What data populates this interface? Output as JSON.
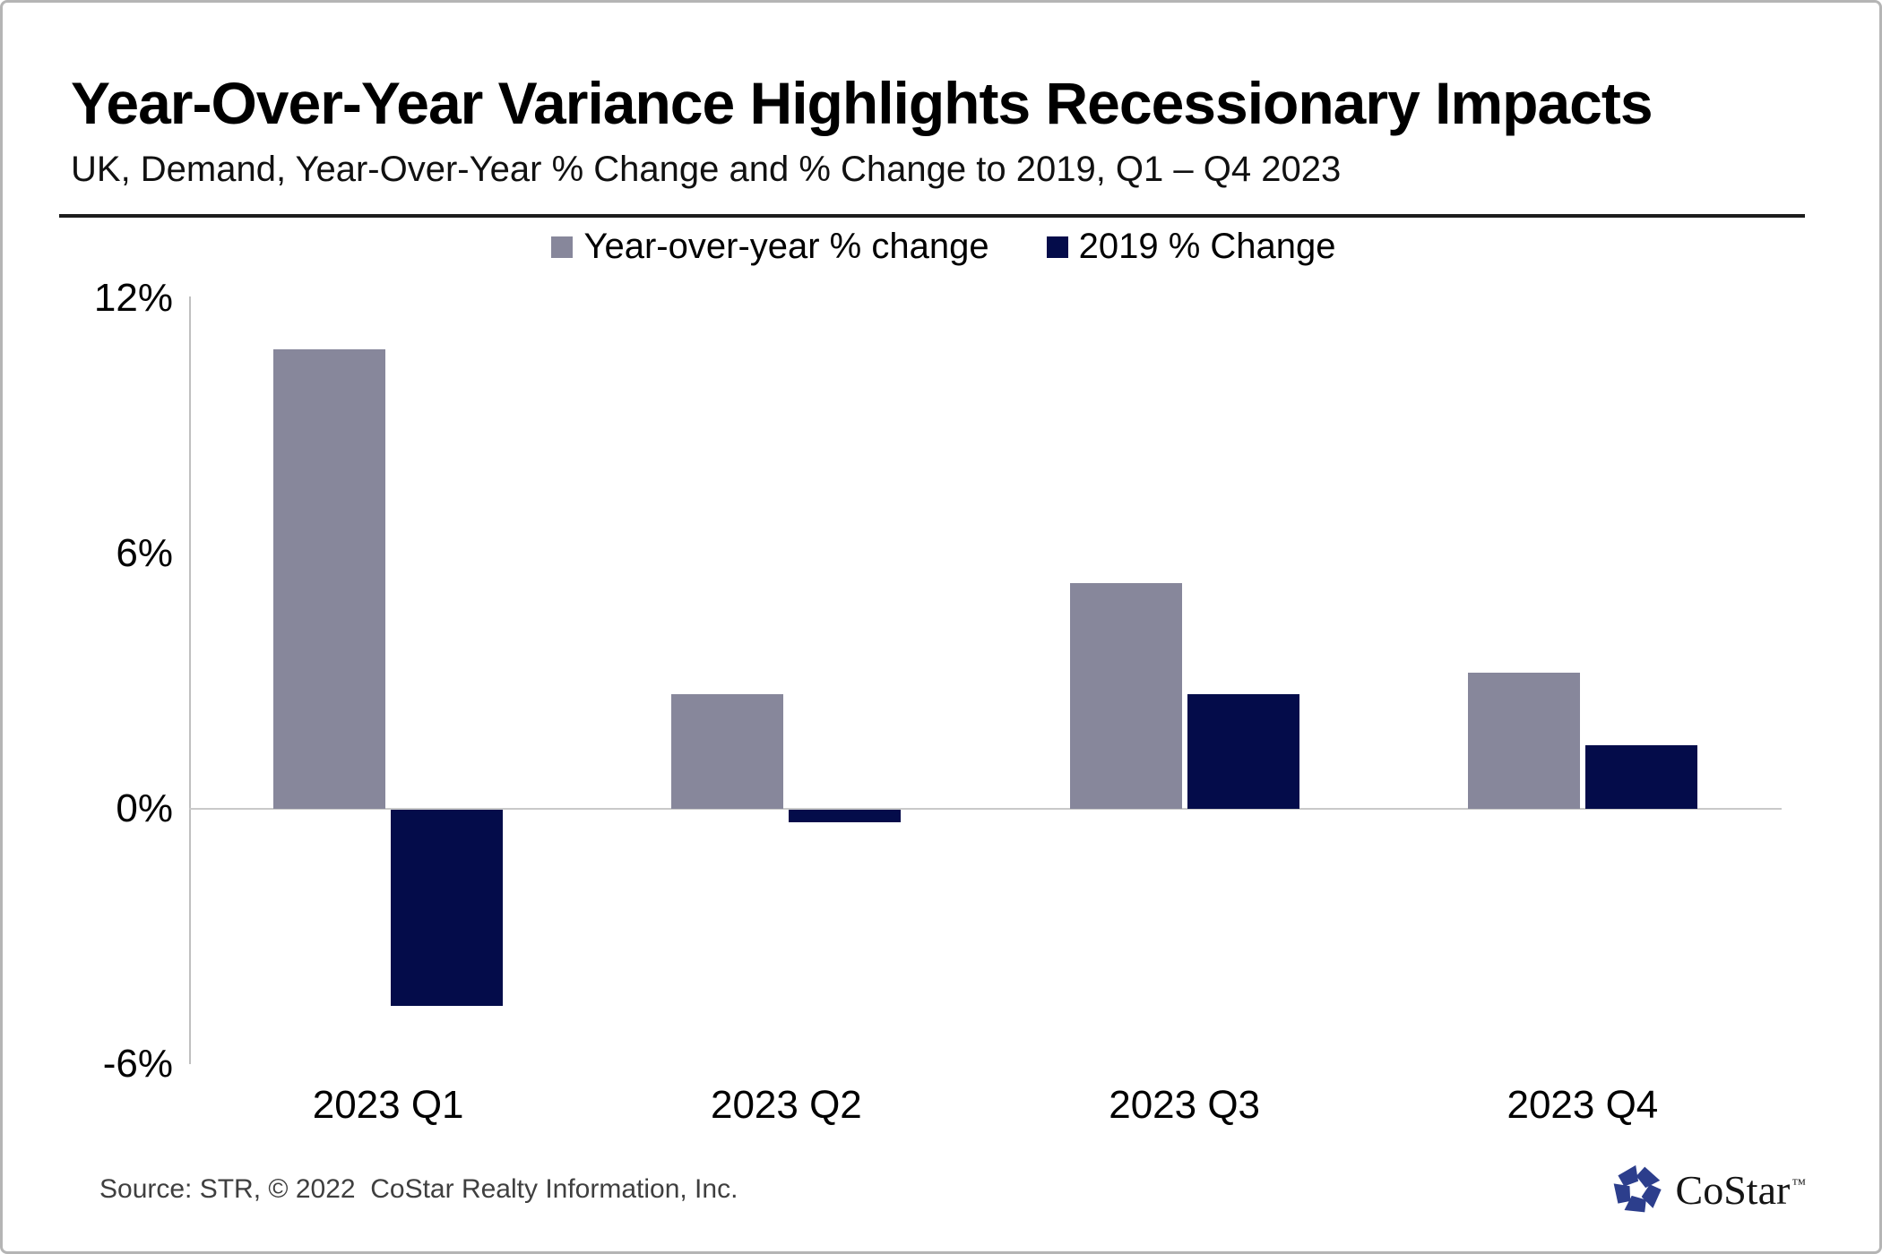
{
  "header": {
    "title": "Year-Over-Year Variance Highlights Recessionary Impacts",
    "subtitle": "UK, Demand, Year-Over-Year % Change and % Change to 2019, Q1 – Q4 2023"
  },
  "colors": {
    "series_yoy": "#87879B",
    "series_2019": "#040C4A",
    "axis_line": "#C0C0C0",
    "zero_gridline": "#C9C9C9",
    "rule": "#1C1C1C",
    "source_text": "#3F3F3F",
    "logo_blue": "#2C3E8C",
    "frame_border": "#B5B5B5"
  },
  "chart_data": {
    "type": "bar",
    "categories": [
      "2023 Q1",
      "2023 Q2",
      "2023 Q3",
      "2023 Q4"
    ],
    "series": [
      {
        "name": "Year-over-year % change",
        "color": "#87879B",
        "values": [
          10.8,
          2.7,
          5.3,
          3.2
        ]
      },
      {
        "name": "2019 % Change",
        "color": "#040C4A",
        "values": [
          -4.6,
          -0.3,
          2.7,
          1.5
        ]
      }
    ],
    "title": "Year-Over-Year Variance Highlights Recessionary Impacts",
    "subtitle": "UK, Demand, Year-Over-Year % Change and % Change to 2019, Q1 – Q4 2023",
    "xlabel": "",
    "ylabel": "",
    "ylim": [
      -6,
      12
    ],
    "yticks": [
      {
        "label": "12%",
        "value": 12
      },
      {
        "label": "6%",
        "value": 6
      },
      {
        "label": "0%",
        "value": 0
      },
      {
        "label": "-6%",
        "value": -6
      }
    ],
    "grid": "zero-baseline-only",
    "legend_position": "top-center"
  },
  "footer": {
    "source": "Source: STR, © 2022  CoStar Realty Information, Inc.",
    "logo_text": "CoStar",
    "logo_tm": "™"
  }
}
